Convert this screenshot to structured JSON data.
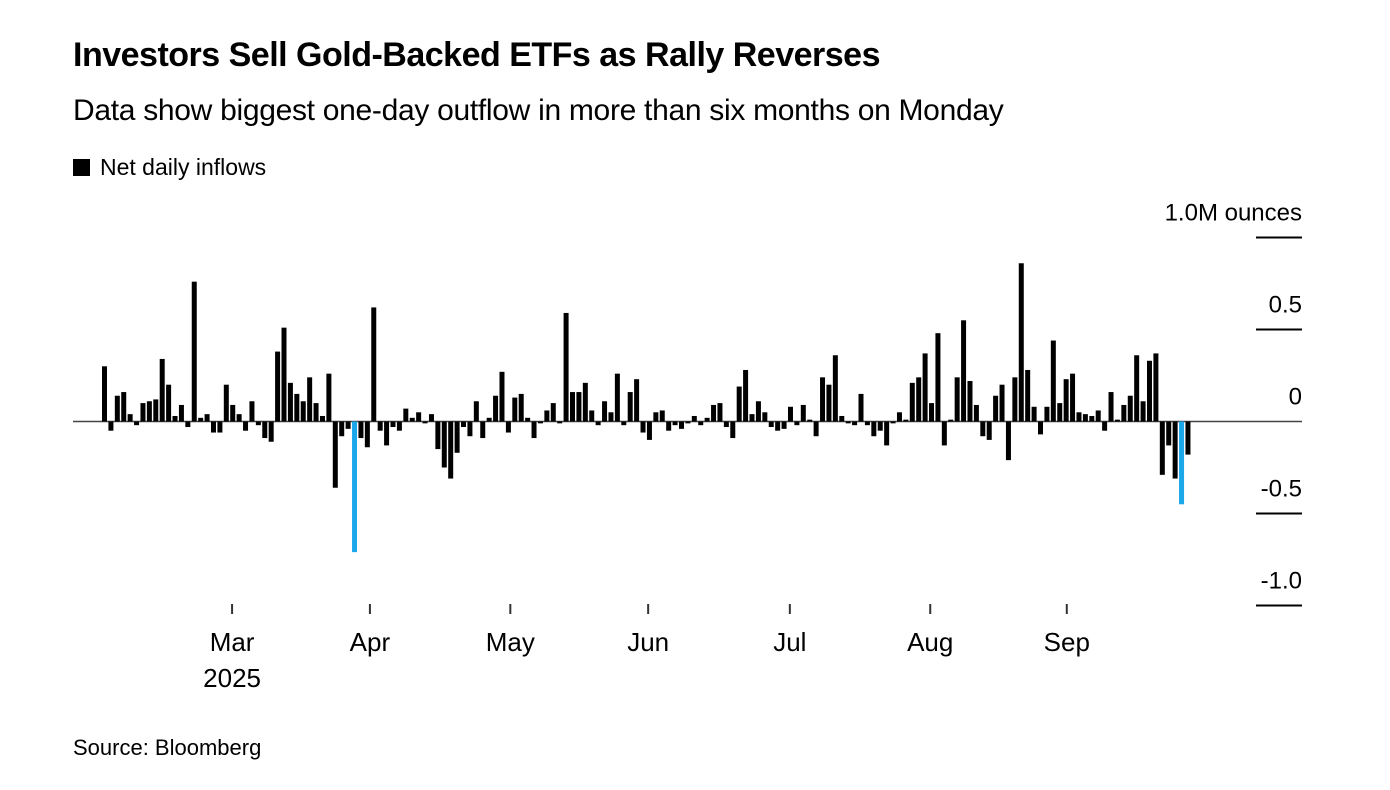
{
  "header": {
    "title": "Investors Sell Gold-Backed ETFs as Rally Reverses",
    "subtitle": "Data show biggest one-day outflow in more than six months on Monday"
  },
  "legend": {
    "label": "Net daily inflows",
    "swatch_color": "#000000"
  },
  "source": {
    "text": "Source: Bloomberg"
  },
  "chart_data": {
    "type": "bar",
    "title": "Net daily inflows",
    "subtitle_note": "Biggest one-day outflow in more than six months on Monday",
    "ylabel": "M ounces",
    "xlabel": "",
    "unit_label": "1.0M ounces",
    "ylim": [
      -1.0,
      1.0
    ],
    "grid": false,
    "legend_position": "top-left",
    "yticks": [
      1.0,
      0.5,
      0,
      -0.5,
      -1.0
    ],
    "ytick_labels": [
      "1.0M ounces",
      "0.5",
      "0",
      "-0.5",
      "-1.0"
    ],
    "colors": {
      "bar": "#000000",
      "highlight": "#1BA8EB",
      "axis_line": "#444444",
      "tick_line": "#000000"
    },
    "x_axis": {
      "year_label": "2025",
      "months": [
        {
          "label": "Mar",
          "index": 19.9
        },
        {
          "label": "Apr",
          "index": 41.4
        },
        {
          "label": "May",
          "index": 63.3
        },
        {
          "label": "Jun",
          "index": 84.8
        },
        {
          "label": "Jul",
          "index": 106.9
        },
        {
          "label": "Aug",
          "index": 128.8
        },
        {
          "label": "Sep",
          "index": 150.1
        }
      ]
    },
    "highlight_indices": [
      39,
      168
    ],
    "bars": [
      0.3,
      -0.05,
      0.14,
      0.16,
      0.04,
      -0.02,
      0.1,
      0.11,
      0.12,
      0.34,
      0.2,
      0.03,
      0.09,
      -0.03,
      0.76,
      0.02,
      0.04,
      -0.06,
      -0.06,
      0.2,
      0.09,
      0.04,
      -0.05,
      0.11,
      -0.02,
      -0.09,
      -0.11,
      0.38,
      0.51,
      0.21,
      0.15,
      0.11,
      0.24,
      0.1,
      0.03,
      0.26,
      -0.36,
      -0.08,
      -0.04,
      -0.71,
      -0.09,
      -0.14,
      0.62,
      -0.05,
      -0.13,
      -0.03,
      -0.05,
      0.07,
      0.02,
      0.05,
      -0.01,
      0.04,
      -0.15,
      -0.25,
      -0.31,
      -0.17,
      -0.03,
      -0.08,
      0.11,
      -0.09,
      0.02,
      0.14,
      0.27,
      -0.06,
      0.13,
      0.15,
      0.02,
      -0.09,
      -0.01,
      0.06,
      0.1,
      -0.01,
      0.59,
      0.16,
      0.16,
      0.21,
      0.06,
      -0.02,
      0.11,
      0.05,
      0.26,
      -0.02,
      0.16,
      0.23,
      -0.06,
      -0.1,
      0.05,
      0.06,
      -0.05,
      -0.02,
      -0.04,
      -0.01,
      0.03,
      -0.02,
      0.02,
      0.09,
      0.1,
      -0.03,
      -0.09,
      0.19,
      0.28,
      0.04,
      0.11,
      0.05,
      -0.03,
      -0.05,
      -0.04,
      0.08,
      -0.02,
      0.09,
      0.01,
      -0.08,
      0.24,
      0.2,
      0.36,
      0.03,
      -0.01,
      -0.02,
      0.15,
      -0.02,
      -0.08,
      -0.05,
      -0.13,
      -0.01,
      0.05,
      0.01,
      0.21,
      0.24,
      0.37,
      0.1,
      0.48,
      -0.13,
      0.01,
      0.24,
      0.55,
      0.22,
      0.09,
      -0.08,
      -0.1,
      0.14,
      0.2,
      -0.21,
      0.24,
      0.86,
      0.28,
      0.08,
      -0.07,
      0.08,
      0.44,
      0.1,
      0.23,
      0.26,
      0.05,
      0.04,
      0.03,
      0.06,
      -0.05,
      0.16,
      0.01,
      0.09,
      0.14,
      0.36,
      0.11,
      0.33,
      0.37,
      -0.29,
      -0.13,
      -0.31,
      -0.45,
      -0.18
    ]
  }
}
